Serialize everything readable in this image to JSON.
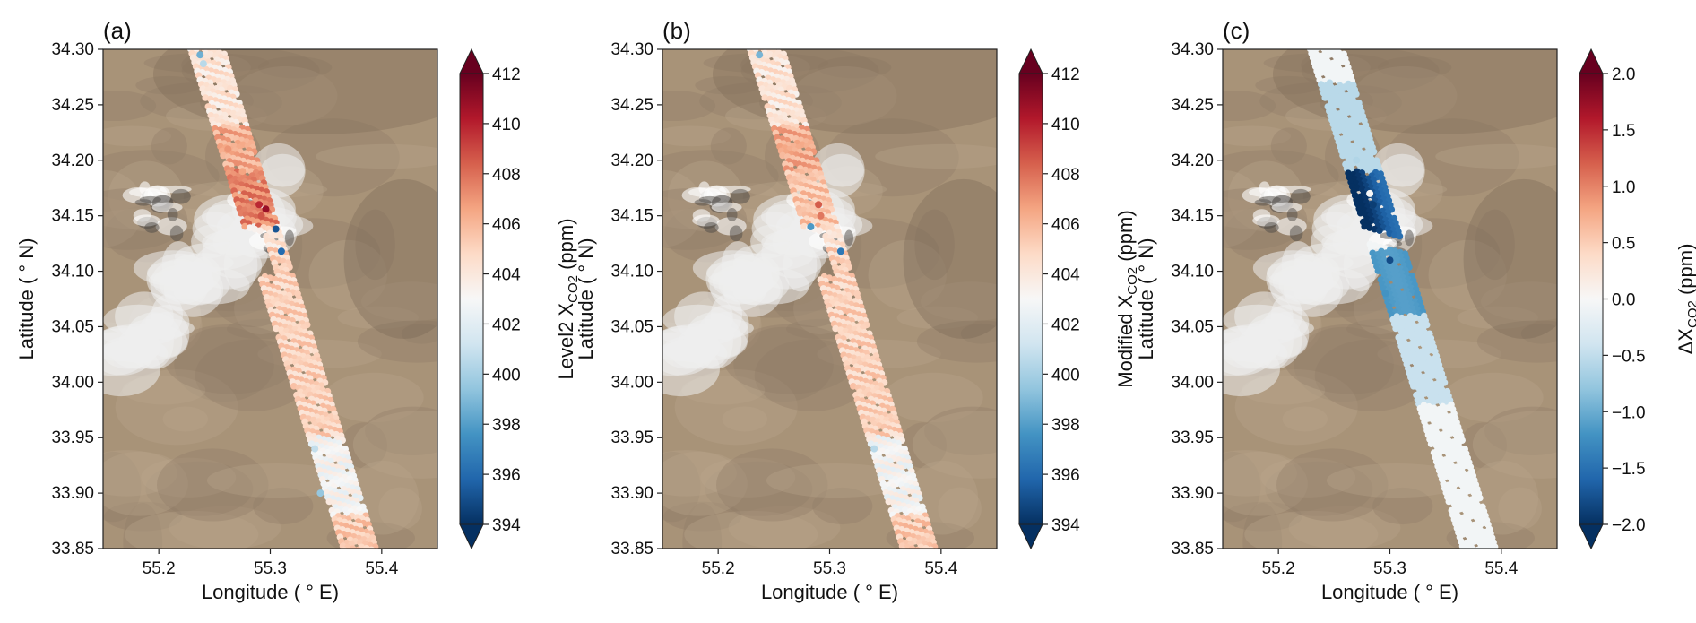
{
  "figure": {
    "colors": {
      "ground_base": "#a89378",
      "ground_dark": "#8e7c66",
      "ground_light": "#b9a58b",
      "cloud": "#eeeeee",
      "frame": "#222222",
      "cmap_low": "#053061",
      "cmap_mid": "#f7f7f7",
      "cmap_high": "#67001f"
    }
  },
  "chart_data": [
    {
      "type": "scatter",
      "panel_label": "(a)",
      "xlabel": "Longitude ( $^\\circ$E)",
      "xlabel_text": "Longitude ( ° E)",
      "ylabel_text": "Latitude ( ° N)",
      "xlim": [
        55.15,
        55.45
      ],
      "ylim": [
        33.85,
        34.3
      ],
      "xticks": [
        55.2,
        55.3,
        55.4
      ],
      "xtick_labels": [
        "55.2",
        "55.3",
        "55.4"
      ],
      "yticks": [
        33.85,
        33.9,
        33.95,
        34.0,
        34.05,
        34.1,
        34.15,
        34.2,
        34.25,
        34.3
      ],
      "ytick_labels": [
        "33.85",
        "33.90",
        "33.95",
        "34.00",
        "34.05",
        "34.10",
        "34.15",
        "34.20",
        "34.25",
        "34.30"
      ],
      "colorbar": {
        "label_prefix": "Level2 X",
        "label_sub": "CO2",
        "label_suffix": " (ppm)",
        "range": [
          394,
          412
        ],
        "extend": "both",
        "ticks": [
          "394",
          "396",
          "398",
          "400",
          "402",
          "404",
          "406",
          "408",
          "410",
          "412"
        ]
      },
      "series": [
        {
          "variable": "XCO2",
          "footprints": [
            {
              "lat": 34.295,
              "lon": 55.237,
              "value": 398.6
            },
            {
              "lat": 34.287,
              "lon": 55.24,
              "value": 400.5
            },
            {
              "lat": 34.16,
              "lon": 55.29,
              "value": 409.8
            },
            {
              "lat": 34.156,
              "lon": 55.296,
              "value": 410.8
            },
            {
              "lat": 34.15,
              "lon": 55.292,
              "value": 408.7
            },
            {
              "lat": 34.138,
              "lon": 55.305,
              "value": 395.2
            },
            {
              "lat": 34.118,
              "lon": 55.31,
              "value": 396.0
            },
            {
              "lat": 34.21,
              "lon": 55.262,
              "value": 407.0
            },
            {
              "lat": 34.19,
              "lon": 55.275,
              "value": 406.6
            },
            {
              "lat": 33.94,
              "lon": 55.34,
              "value": 400.8
            },
            {
              "lat": 33.9,
              "lon": 55.345,
              "value": 399.5
            }
          ]
        }
      ]
    },
    {
      "type": "scatter",
      "panel_label": "(b)",
      "xlabel_text": "Longitude ( ° E)",
      "ylabel_text": "Latitude ( ° N)",
      "xlim": [
        55.15,
        55.45
      ],
      "ylim": [
        33.85,
        34.3
      ],
      "xticks": [
        55.2,
        55.3,
        55.4
      ],
      "xtick_labels": [
        "55.2",
        "55.3",
        "55.4"
      ],
      "yticks": [
        33.85,
        33.9,
        33.95,
        34.0,
        34.05,
        34.1,
        34.15,
        34.2,
        34.25,
        34.3
      ],
      "ytick_labels": [
        "33.85",
        "33.90",
        "33.95",
        "34.00",
        "34.05",
        "34.10",
        "34.15",
        "34.20",
        "34.25",
        "34.30"
      ],
      "colorbar": {
        "label_prefix": "Modified X",
        "label_sub": "CO2",
        "label_suffix": " (ppm)",
        "range": [
          394,
          412
        ],
        "extend": "both",
        "ticks": [
          "394",
          "396",
          "398",
          "400",
          "402",
          "404",
          "406",
          "408",
          "410",
          "412"
        ]
      },
      "series": [
        {
          "variable": "XCO2_modified",
          "footprints": [
            {
              "lat": 34.295,
              "lon": 55.237,
              "value": 398.8
            },
            {
              "lat": 34.16,
              "lon": 55.29,
              "value": 408.5
            },
            {
              "lat": 34.15,
              "lon": 55.292,
              "value": 407.8
            },
            {
              "lat": 34.14,
              "lon": 55.283,
              "value": 397.8
            },
            {
              "lat": 34.118,
              "lon": 55.31,
              "value": 396.5
            },
            {
              "lat": 33.94,
              "lon": 55.34,
              "value": 400.5
            }
          ]
        }
      ]
    },
    {
      "type": "scatter",
      "panel_label": "(c)",
      "xlabel_text": "Longitude ( ° E)",
      "ylabel_text": "Latitude ( ° N)",
      "xlim": [
        55.15,
        55.45
      ],
      "ylim": [
        33.85,
        34.3
      ],
      "xticks": [
        55.2,
        55.3,
        55.4
      ],
      "xtick_labels": [
        "55.2",
        "55.3",
        "55.4"
      ],
      "yticks": [
        33.85,
        33.9,
        33.95,
        34.0,
        34.05,
        34.1,
        34.15,
        34.2,
        34.25,
        34.3
      ],
      "ytick_labels": [
        "33.85",
        "33.90",
        "33.95",
        "34.00",
        "34.05",
        "34.10",
        "34.15",
        "34.20",
        "34.25",
        "34.30"
      ],
      "colorbar": {
        "label_prefix": "ΔX",
        "label_sub": "CO2",
        "label_suffix": " (ppm)",
        "range": [
          -2.0,
          2.0
        ],
        "extend": "both",
        "ticks": [
          "−2.0",
          "−1.5",
          "−1.0",
          "−0.5",
          "0.0",
          "0.5",
          "1.0",
          "1.5",
          "2.0"
        ]
      },
      "series": [
        {
          "variable": "delta_XCO2",
          "footprints": [
            {
              "lat": 34.16,
              "lon": 55.285,
              "value": -1.9
            },
            {
              "lat": 34.17,
              "lon": 55.282,
              "value": 0.0
            },
            {
              "lat": 34.11,
              "lon": 55.3,
              "value": -1.8
            },
            {
              "lat": 34.08,
              "lon": 55.296,
              "value": -1.2
            },
            {
              "lat": 34.2,
              "lon": 55.27,
              "value": -0.6
            }
          ]
        }
      ]
    }
  ]
}
